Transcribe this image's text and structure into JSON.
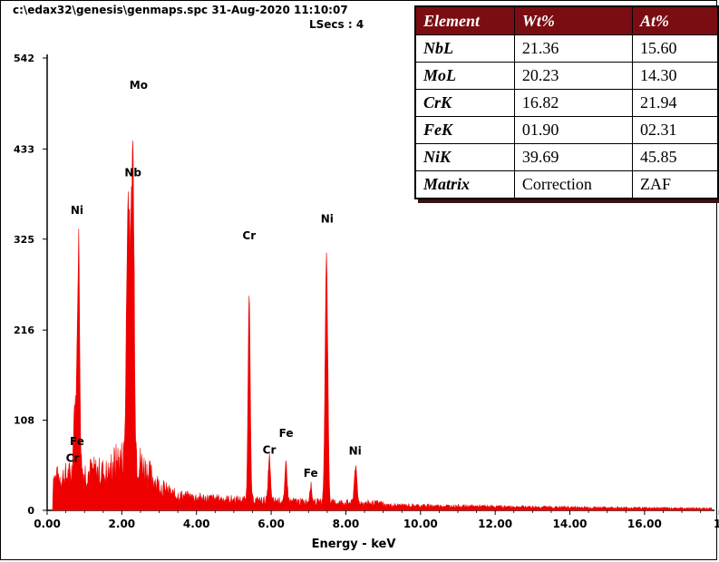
{
  "header": {
    "file": "c:\\edax32\\genesis\\genmaps.spc  31-Aug-2020 11:10:07",
    "lsecs": "LSecs :  4"
  },
  "colors": {
    "spectrum": "#ee0000",
    "table_header": "#7a0d12"
  },
  "chart_data": {
    "type": "area",
    "xlabel": "Energy - keV",
    "ylabel": "",
    "xlim": [
      0,
      17.8
    ],
    "ylim": [
      0,
      542
    ],
    "x_ticks": [
      "0.00",
      "2.00",
      "4.00",
      "6.00",
      "8.00",
      "10.00",
      "12.00",
      "14.00",
      "16.00",
      "1"
    ],
    "y_ticks": [
      "0",
      "108",
      "216",
      "325",
      "433",
      "542"
    ],
    "peaks": [
      {
        "x": 0.74,
        "y": 85,
        "w": 0.05
      },
      {
        "x": 0.84,
        "y": 295,
        "w": 0.045
      },
      {
        "x": 2.17,
        "y": 340,
        "w": 0.06
      },
      {
        "x": 2.29,
        "y": 395,
        "w": 0.055
      },
      {
        "x": 5.41,
        "y": 270,
        "w": 0.04
      },
      {
        "x": 5.95,
        "y": 55,
        "w": 0.04
      },
      {
        "x": 6.4,
        "y": 48,
        "w": 0.04
      },
      {
        "x": 7.06,
        "y": 22,
        "w": 0.04
      },
      {
        "x": 7.48,
        "y": 310,
        "w": 0.05
      },
      {
        "x": 8.26,
        "y": 45,
        "w": 0.05
      }
    ],
    "labels": [
      {
        "text": "Mo",
        "x": 2.45,
        "y": 505
      },
      {
        "text": "Nb",
        "x": 2.3,
        "y": 400
      },
      {
        "text": "Ni",
        "x": 0.8,
        "y": 355
      },
      {
        "text": "Fe",
        "x": 0.8,
        "y": 78
      },
      {
        "text": "Cr",
        "x": 0.68,
        "y": 58
      },
      {
        "text": "Cr",
        "x": 5.41,
        "y": 325
      },
      {
        "text": "Ni",
        "x": 7.5,
        "y": 345
      },
      {
        "text": "Fe",
        "x": 6.4,
        "y": 88
      },
      {
        "text": "Cr",
        "x": 5.95,
        "y": 68
      },
      {
        "text": "Fe",
        "x": 7.06,
        "y": 40
      },
      {
        "text": "Ni",
        "x": 8.25,
        "y": 67
      }
    ]
  },
  "table": {
    "headers": [
      "Element",
      "Wt%",
      "At%"
    ],
    "rows": [
      {
        "el": "NbL",
        "wt": "21.36",
        "at": "15.60"
      },
      {
        "el": "MoL",
        "wt": "20.23",
        "at": "14.30"
      },
      {
        "el": "CrK",
        "wt": "16.82",
        "at": "21.94"
      },
      {
        "el": "FeK",
        "wt": "01.90",
        "at": "02.31"
      },
      {
        "el": "NiK",
        "wt": "39.69",
        "at": "45.85"
      },
      {
        "el": "Matrix",
        "wt": "Correction",
        "at": "ZAF"
      }
    ]
  }
}
